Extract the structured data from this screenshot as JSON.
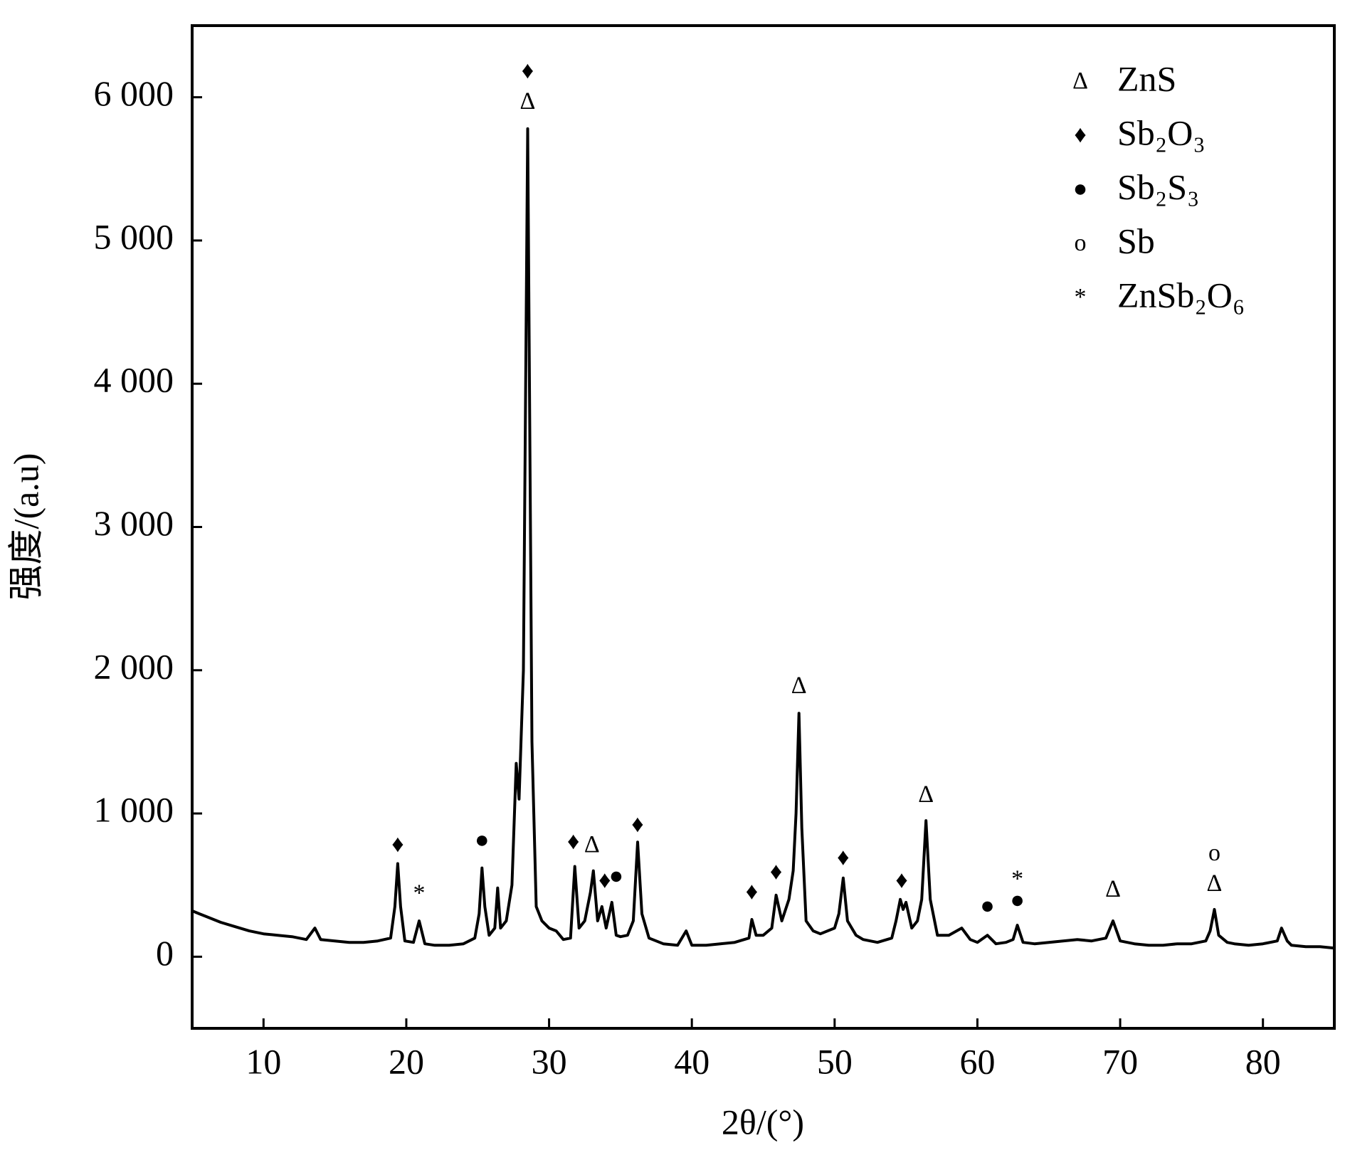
{
  "chart_data": {
    "type": "line",
    "xlabel": "2θ/(°)",
    "ylabel": "强度/(a.u)",
    "color": "#000000",
    "xlim": [
      5,
      85
    ],
    "xticks": [
      10,
      20,
      30,
      40,
      50,
      60,
      70,
      80
    ],
    "ylim": [
      -500,
      6500
    ],
    "yticks": [
      0,
      {
        "value": 1000,
        "label": "1 000"
      },
      {
        "value": 2000,
        "label": "2 000"
      },
      {
        "value": 3000,
        "label": "3 000"
      },
      {
        "value": 4000,
        "label": "4 000"
      },
      {
        "value": 5000,
        "label": "5 000"
      },
      {
        "value": 6000,
        "label": "6 000"
      }
    ],
    "x": [
      5,
      5.5,
      6,
      7,
      8,
      9,
      10,
      11,
      12,
      13,
      13.6,
      14,
      15,
      16,
      17,
      18,
      18.9,
      19.2,
      19.4,
      19.6,
      19.9,
      20.5,
      20.9,
      21.3,
      22,
      23,
      24,
      24.8,
      25.1,
      25.3,
      25.5,
      25.8,
      26.2,
      26.4,
      26.6,
      27,
      27.4,
      27.7,
      27.9,
      28.2,
      28.5,
      28.8,
      29.1,
      29.5,
      30,
      30.5,
      31,
      31.5,
      31.8,
      32.1,
      32.5,
      32.9,
      33.1,
      33.4,
      33.7,
      34,
      34.4,
      34.7,
      35,
      35.5,
      35.9,
      36.2,
      36.5,
      37,
      38,
      39,
      39.6,
      40,
      41,
      42,
      43,
      44,
      44.2,
      44.5,
      45,
      45.6,
      45.9,
      46.3,
      46.8,
      47.1,
      47.3,
      47.5,
      47.7,
      48,
      48.5,
      49,
      50,
      50.3,
      50.6,
      50.9,
      51.5,
      52,
      53,
      54,
      54.3,
      54.6,
      54.8,
      55,
      55.4,
      55.8,
      56.1,
      56.4,
      56.7,
      57.2,
      58,
      58.9,
      59.5,
      60,
      60.7,
      61.3,
      62,
      62.5,
      62.8,
      63.2,
      64,
      65,
      66,
      67,
      68,
      69,
      69.5,
      70,
      71,
      72,
      73,
      74,
      75,
      76,
      76.3,
      76.6,
      76.9,
      77.5,
      78,
      79,
      80,
      81,
      81.3,
      81.7,
      82,
      83,
      84,
      85
    ],
    "values": [
      320,
      300,
      280,
      240,
      210,
      180,
      160,
      150,
      140,
      120,
      200,
      120,
      110,
      100,
      100,
      110,
      130,
      350,
      650,
      350,
      110,
      100,
      250,
      90,
      80,
      80,
      90,
      130,
      300,
      620,
      350,
      150,
      200,
      480,
      200,
      250,
      500,
      1350,
      1100,
      2000,
      5780,
      1500,
      350,
      250,
      200,
      180,
      120,
      130,
      630,
      200,
      250,
      450,
      600,
      250,
      350,
      200,
      380,
      150,
      140,
      150,
      250,
      800,
      300,
      130,
      90,
      80,
      180,
      80,
      80,
      90,
      100,
      130,
      260,
      150,
      150,
      200,
      430,
      250,
      400,
      600,
      1000,
      1700,
      900,
      250,
      180,
      160,
      200,
      300,
      550,
      250,
      150,
      120,
      100,
      130,
      250,
      400,
      330,
      380,
      200,
      250,
      400,
      950,
      400,
      150,
      150,
      200,
      120,
      100,
      150,
      90,
      100,
      120,
      220,
      100,
      90,
      100,
      110,
      120,
      110,
      130,
      250,
      110,
      90,
      80,
      80,
      90,
      90,
      110,
      180,
      330,
      150,
      100,
      90,
      80,
      90,
      110,
      200,
      110,
      80,
      70,
      70,
      60
    ],
    "annotations": [
      {
        "label": "♦",
        "x": 28.5,
        "y": 6170
      },
      {
        "label": "Δ",
        "x": 28.5,
        "y": 5960
      },
      {
        "label": "♦",
        "x": 19.4,
        "y": 770
      },
      {
        "label": "*",
        "x": 20.9,
        "y": 430
      },
      {
        "label": "●",
        "x": 25.3,
        "y": 800
      },
      {
        "label": "♦",
        "x": 31.7,
        "y": 790
      },
      {
        "label": "Δ",
        "x": 33.0,
        "y": 770
      },
      {
        "label": "♦",
        "x": 33.9,
        "y": 520
      },
      {
        "label": "●",
        "x": 34.7,
        "y": 550
      },
      {
        "label": "♦",
        "x": 36.2,
        "y": 910
      },
      {
        "label": "♦",
        "x": 44.2,
        "y": 440
      },
      {
        "label": "♦",
        "x": 45.9,
        "y": 580
      },
      {
        "label": "Δ",
        "x": 47.5,
        "y": 1880
      },
      {
        "label": "♦",
        "x": 50.6,
        "y": 680
      },
      {
        "label": "♦",
        "x": 54.7,
        "y": 520
      },
      {
        "label": "Δ",
        "x": 56.4,
        "y": 1120
      },
      {
        "label": "●",
        "x": 60.7,
        "y": 340
      },
      {
        "label": "*",
        "x": 62.8,
        "y": 530
      },
      {
        "label": "●",
        "x": 62.8,
        "y": 380
      },
      {
        "label": "Δ",
        "x": 69.5,
        "y": 460
      },
      {
        "label": "o",
        "x": 76.6,
        "y": 710
      },
      {
        "label": "Δ",
        "x": 76.6,
        "y": 500
      }
    ],
    "legend": [
      {
        "symbol": "Δ",
        "label": "ZnS"
      },
      {
        "symbol": "♦",
        "label": "Sb₂O₃"
      },
      {
        "symbol": "●",
        "label": "Sb₂S₃"
      },
      {
        "symbol": "o",
        "label": "Sb"
      },
      {
        "symbol": "*",
        "label": "ZnSb₂O₆"
      }
    ]
  }
}
